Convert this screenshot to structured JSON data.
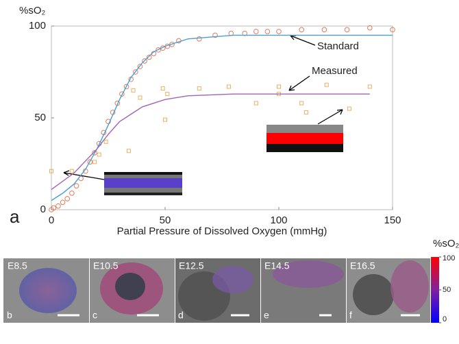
{
  "chart_data": {
    "type": "scatter",
    "y_label": "%sO₂",
    "x_label": "Partial Pressure of Dissolved Oxygen (mmHg)",
    "panel_letter": "a",
    "annotations": [
      "Standard",
      "Measured"
    ],
    "xlim": [
      0,
      150
    ],
    "ylim": [
      0,
      100
    ],
    "xticks": [
      0,
      50,
      100,
      150
    ],
    "yticks": [
      0,
      50,
      100
    ],
    "grid": false,
    "series": [
      {
        "marker": "circle",
        "color": "#e07a5a",
        "x": [
          0,
          1,
          3,
          5,
          7,
          9,
          11,
          13,
          15,
          17,
          19,
          21,
          23,
          25,
          27,
          29,
          31,
          33,
          35,
          37,
          39,
          41,
          43,
          45,
          47,
          49,
          51,
          53,
          56,
          65,
          72,
          79,
          85,
          90,
          95,
          100,
          110,
          120,
          130,
          140,
          150
        ],
        "values": [
          0,
          1,
          2,
          4,
          6,
          9,
          13,
          17,
          21,
          26,
          31,
          36,
          42,
          48,
          53,
          58,
          63,
          67,
          71,
          75,
          78,
          81,
          83,
          85,
          87,
          88,
          89,
          90,
          92,
          93,
          95,
          96,
          96,
          97,
          97,
          97,
          98,
          98,
          98,
          99,
          98
        ]
      },
      {
        "marker": "square",
        "color": "#e8b060",
        "x": [
          0,
          9,
          19,
          21,
          24,
          34,
          36,
          39,
          49,
          50,
          51,
          65,
          78,
          90,
          100,
          100,
          110,
          112,
          121,
          131,
          140
        ],
        "values": [
          21,
          21,
          26,
          30,
          37,
          32,
          65,
          61,
          66,
          49,
          63,
          66,
          67,
          58,
          67,
          63,
          58,
          53,
          68,
          55,
          67
        ]
      },
      {
        "marker": "line",
        "color": "#4a9fd0",
        "x": [
          0,
          5,
          10,
          15,
          20,
          25,
          30,
          35,
          40,
          45,
          50,
          60,
          70,
          80,
          100,
          120,
          150
        ],
        "values": [
          5,
          9,
          14,
          22,
          33,
          46,
          60,
          72,
          80,
          86,
          89,
          93,
          94,
          95,
          95,
          95,
          95
        ]
      },
      {
        "marker": "line",
        "color": "#a064b4",
        "x": [
          0,
          10,
          20,
          25,
          30,
          35,
          40,
          50,
          60,
          80,
          100,
          120,
          140
        ],
        "values": [
          11,
          20,
          33,
          41,
          48,
          52,
          56,
          60,
          62,
          63,
          63,
          63,
          63
        ]
      }
    ]
  },
  "panels": [
    {
      "label": "E8.5",
      "letter": "b"
    },
    {
      "label": "E10.5",
      "letter": "c"
    },
    {
      "label": "E12.5",
      "letter": "d"
    },
    {
      "label": "E14.5",
      "letter": "e"
    },
    {
      "label": "E16.5",
      "letter": "f"
    }
  ],
  "colorbar": {
    "title": "%sO₂",
    "range": [
      0,
      100
    ],
    "ticks": [
      0,
      50,
      100
    ]
  }
}
